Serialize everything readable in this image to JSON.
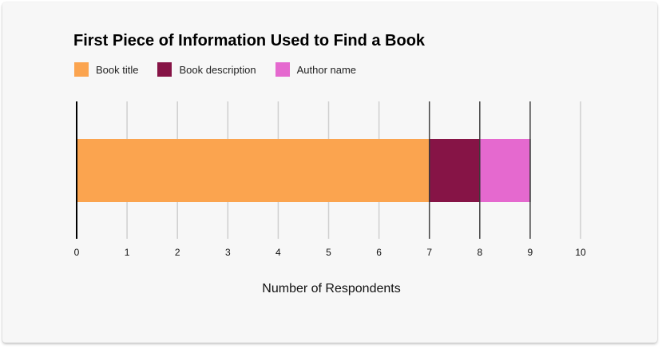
{
  "chart_data": {
    "type": "bar",
    "orientation": "horizontal",
    "stacked": true,
    "title": "First Piece of Information Used to Find a Book",
    "xlabel": "Number of Respondents",
    "ylabel": "",
    "xlim": [
      0,
      10
    ],
    "x_ticks": [
      "0",
      "1",
      "2",
      "3",
      "4",
      "5",
      "6",
      "7",
      "8",
      "9",
      "10"
    ],
    "categories": [
      ""
    ],
    "series": [
      {
        "name": "Book title",
        "values": [
          7
        ],
        "color": "#fba44f"
      },
      {
        "name": "Book description",
        "values": [
          1
        ],
        "color": "#861446"
      },
      {
        "name": "Author name",
        "values": [
          1
        ],
        "color": "#e569cf"
      }
    ],
    "grid": true,
    "legend_position": "top-left"
  }
}
